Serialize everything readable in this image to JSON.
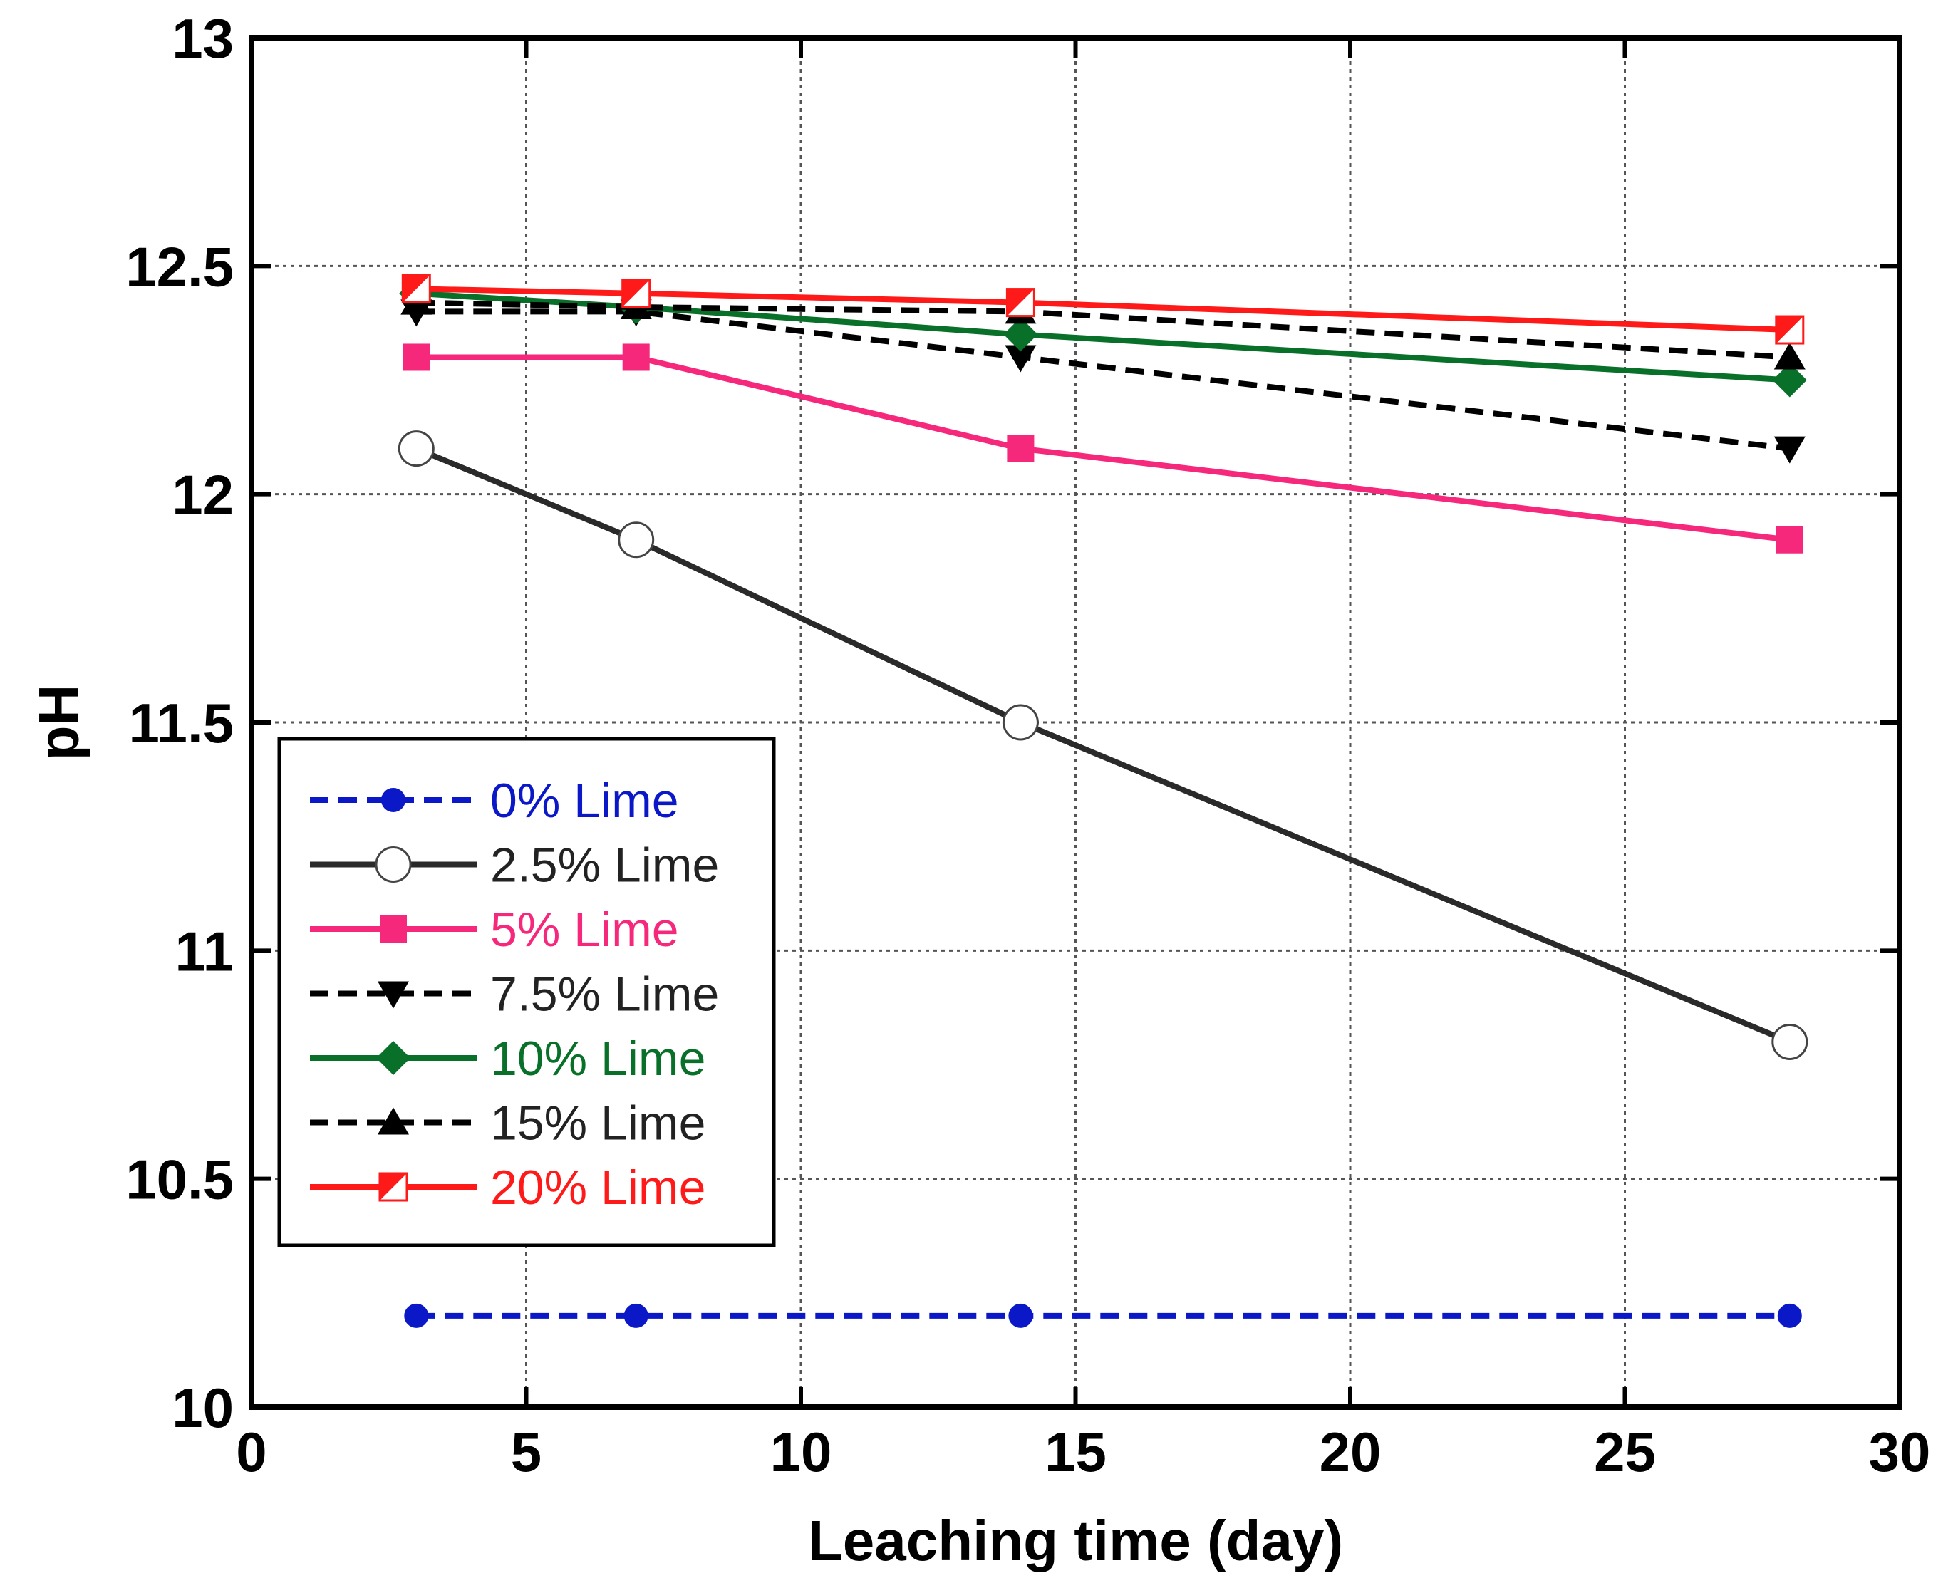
{
  "chart_data": {
    "type": "line",
    "title": "",
    "xlabel": "Leaching time (day)",
    "ylabel": "pH",
    "xlim": [
      0,
      30
    ],
    "ylim": [
      10,
      13
    ],
    "xticks": [
      0,
      5,
      10,
      15,
      20,
      25,
      30
    ],
    "yticks": [
      10,
      10.5,
      11,
      11.5,
      12,
      12.5,
      13
    ],
    "xtick_labels": [
      "0",
      "5",
      "10",
      "15",
      "20",
      "25",
      "30"
    ],
    "ytick_labels": [
      "10",
      "10.5",
      "11",
      "11.5",
      "12",
      "12.5",
      "13"
    ],
    "grid": true,
    "legend_position": "lower-left",
    "x": [
      3,
      7,
      14,
      28
    ],
    "series": [
      {
        "name": "0% Lime",
        "values": [
          10.2,
          10.2,
          10.2,
          10.2
        ],
        "color": "#0b18c8",
        "dash": "dashed",
        "marker": "circle-filled"
      },
      {
        "name": "2.5% Lime",
        "values": [
          12.1,
          11.9,
          11.5,
          10.8
        ],
        "color": "#2a2a2a",
        "dash": "solid",
        "marker": "circle-open"
      },
      {
        "name": "5% Lime",
        "values": [
          12.3,
          12.3,
          12.1,
          11.9
        ],
        "color": "#f5287c",
        "dash": "solid",
        "marker": "square"
      },
      {
        "name": "7.5% Lime",
        "values": [
          12.4,
          12.4,
          12.3,
          12.1
        ],
        "color": "#000000",
        "dash": "dashed",
        "marker": "triangle-down"
      },
      {
        "name": "10% Lime",
        "values": [
          12.44,
          12.41,
          12.35,
          12.25
        ],
        "color": "#087028",
        "dash": "solid",
        "marker": "diamond"
      },
      {
        "name": "15% Lime",
        "values": [
          12.42,
          12.41,
          12.4,
          12.3
        ],
        "color": "#000000",
        "dash": "dashed",
        "marker": "triangle-up"
      },
      {
        "name": "20% Lime",
        "values": [
          12.45,
          12.44,
          12.42,
          12.36
        ],
        "color": "#ff1a1a",
        "dash": "solid",
        "marker": "half-square"
      }
    ]
  }
}
